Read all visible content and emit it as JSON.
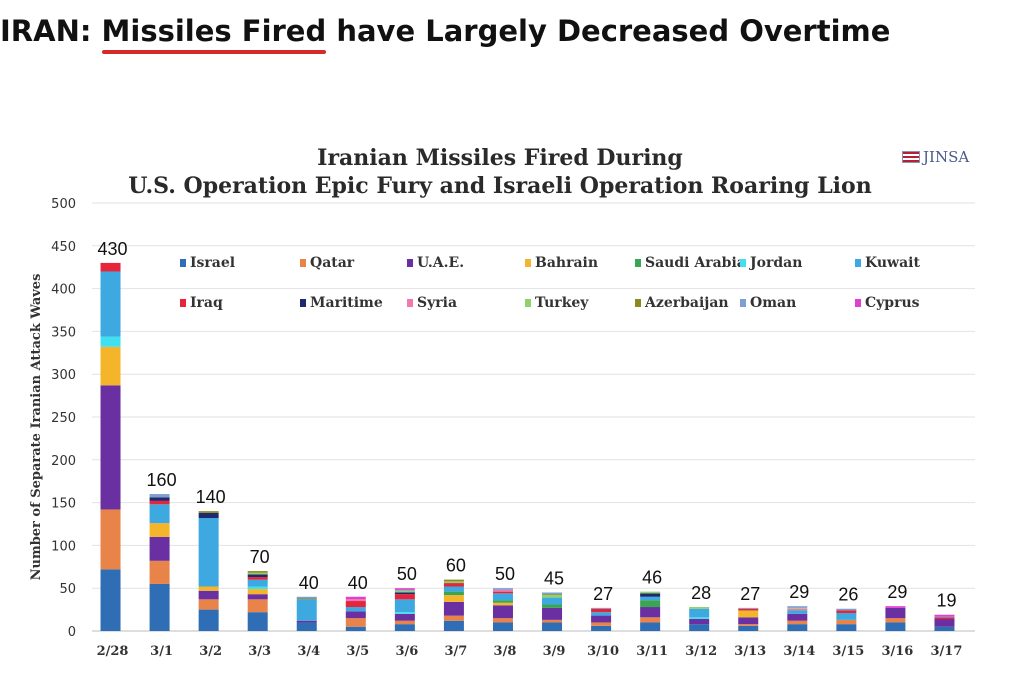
{
  "headline": {
    "highlight": "Missiles Fired",
    "prefix": "IRAN: ",
    "suffix": " have Largely Decreased Overtime"
  },
  "source": "JINSA",
  "chart_data": {
    "type": "bar",
    "stacked": true,
    "title": [
      "Iranian Missiles Fired During",
      "U.S. Operation Epic Fury and Israeli Operation Roaring Lion"
    ],
    "ylabel": "Number of Separate Iranian Attack Waves",
    "xlabel": "",
    "ylim": [
      0,
      500
    ],
    "yticks": [
      0,
      50,
      100,
      150,
      200,
      250,
      300,
      350,
      400,
      450,
      500
    ],
    "grid": true,
    "legend_position": "top",
    "categories": [
      "2/28",
      "3/1",
      "3/2",
      "3/3",
      "3/4",
      "3/5",
      "3/6",
      "3/7",
      "3/8",
      "3/9",
      "3/10",
      "3/11",
      "3/12",
      "3/13",
      "3/14",
      "3/15",
      "3/16",
      "3/17"
    ],
    "totals": [
      430,
      160,
      140,
      70,
      40,
      40,
      50,
      60,
      50,
      45,
      27,
      46,
      28,
      27,
      29,
      26,
      29,
      19
    ],
    "series": [
      {
        "name": "Israel",
        "color": "#2f6db5",
        "values": [
          72,
          55,
          25,
          22,
          10,
          5,
          8,
          12,
          10,
          10,
          6,
          10,
          8,
          6,
          8,
          8,
          10,
          5
        ]
      },
      {
        "name": "Qatar",
        "color": "#e8834a",
        "values": [
          70,
          27,
          12,
          15,
          0,
          10,
          4,
          6,
          5,
          3,
          4,
          6,
          0,
          2,
          4,
          5,
          5,
          0
        ]
      },
      {
        "name": "U.A.E.",
        "color": "#6a2fa0",
        "values": [
          145,
          28,
          10,
          6,
          2,
          8,
          8,
          16,
          15,
          14,
          8,
          12,
          6,
          8,
          8,
          0,
          12,
          9
        ]
      },
      {
        "name": "Bahrain",
        "color": "#f5b52a",
        "values": [
          45,
          16,
          5,
          6,
          0,
          0,
          0,
          8,
          3,
          0,
          0,
          0,
          0,
          8,
          0,
          0,
          0,
          0
        ]
      },
      {
        "name": "Saudi Arabia",
        "color": "#3aa655",
        "values": [
          0,
          0,
          0,
          0,
          0,
          0,
          0,
          4,
          3,
          4,
          0,
          8,
          0,
          0,
          0,
          0,
          0,
          0
        ]
      },
      {
        "name": "Jordan",
        "color": "#40e0f0",
        "values": [
          12,
          0,
          0,
          3,
          0,
          0,
          2,
          0,
          0,
          0,
          0,
          0,
          2,
          0,
          0,
          0,
          0,
          0
        ]
      },
      {
        "name": "Kuwait",
        "color": "#3ea9e0",
        "values": [
          76,
          22,
          80,
          8,
          25,
          5,
          15,
          6,
          8,
          8,
          4,
          4,
          10,
          0,
          4,
          8,
          0,
          0
        ]
      },
      {
        "name": "Iraq",
        "color": "#e8243a",
        "values": [
          10,
          4,
          0,
          3,
          0,
          7,
          6,
          4,
          2,
          0,
          4,
          0,
          0,
          2,
          0,
          3,
          0,
          2
        ]
      },
      {
        "name": "Maritime",
        "color": "#1f2a6e",
        "values": [
          0,
          4,
          6,
          3,
          0,
          0,
          2,
          0,
          0,
          0,
          0,
          4,
          0,
          0,
          0,
          0,
          0,
          0
        ]
      },
      {
        "name": "Syria",
        "color": "#f07ab0",
        "values": [
          0,
          0,
          0,
          0,
          0,
          2,
          0,
          0,
          2,
          0,
          0,
          0,
          0,
          0,
          2,
          0,
          0,
          0
        ]
      },
      {
        "name": "Turkey",
        "color": "#8fd16a",
        "values": [
          0,
          0,
          0,
          2,
          0,
          0,
          2,
          2,
          0,
          3,
          0,
          2,
          2,
          0,
          1,
          0,
          0,
          0
        ]
      },
      {
        "name": "Azerbaijan",
        "color": "#8a8a1e",
        "values": [
          0,
          0,
          2,
          2,
          1,
          0,
          0,
          2,
          0,
          1,
          0,
          0,
          0,
          0,
          0,
          0,
          0,
          0
        ]
      },
      {
        "name": "Oman",
        "color": "#7f9fcf",
        "values": [
          0,
          4,
          0,
          0,
          2,
          0,
          1,
          0,
          2,
          2,
          1,
          0,
          0,
          1,
          2,
          2,
          0,
          1
        ]
      },
      {
        "name": "Cyprus",
        "color": "#e040d0",
        "values": [
          0,
          0,
          0,
          0,
          0,
          3,
          2,
          0,
          0,
          0,
          0,
          0,
          0,
          0,
          0,
          0,
          2,
          2
        ]
      }
    ]
  }
}
